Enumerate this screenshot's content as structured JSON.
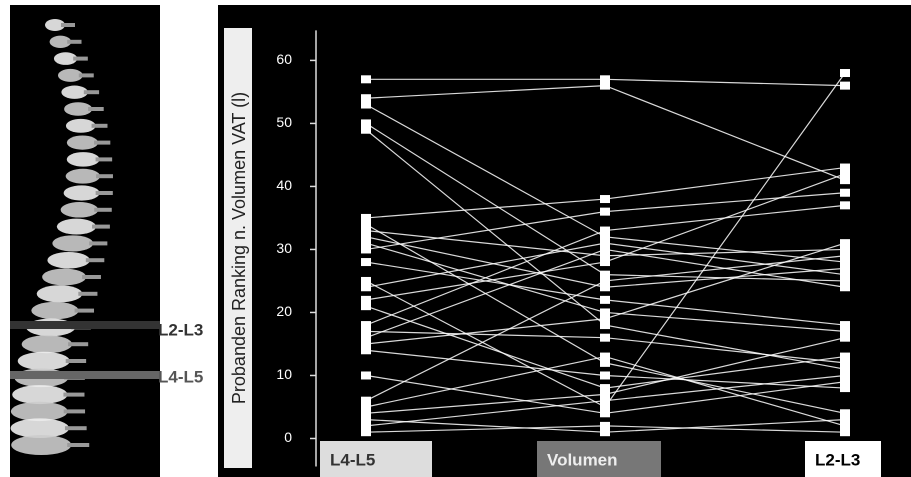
{
  "chart_data": {
    "type": "slope",
    "ylabel": "Probanden Ranking n. Volumen VAT (l)",
    "categories": [
      "L4-L5",
      "Volumen",
      "L2-L3"
    ],
    "color": "#ffffff",
    "ylim": [
      -5,
      68
    ],
    "yticks": [
      0,
      10,
      20,
      30,
      40,
      50,
      60
    ],
    "series": [
      {
        "values": [
          57,
          57,
          56
        ]
      },
      {
        "values": [
          54,
          56,
          41
        ]
      },
      {
        "values": [
          53,
          32,
          28
        ]
      },
      {
        "values": [
          50,
          26,
          25
        ]
      },
      {
        "values": [
          49,
          18,
          11
        ]
      },
      {
        "values": [
          35,
          38,
          43
        ]
      },
      {
        "values": [
          34,
          12,
          4
        ]
      },
      {
        "values": [
          33,
          29,
          30
        ]
      },
      {
        "values": [
          32,
          24,
          27
        ]
      },
      {
        "values": [
          31,
          20,
          17
        ]
      },
      {
        "values": [
          30,
          36,
          39
        ]
      },
      {
        "values": [
          25,
          5,
          58
        ]
      },
      {
        "values": [
          24,
          31,
          26
        ]
      },
      {
        "values": [
          22,
          28,
          42
        ]
      },
      {
        "values": [
          21,
          8,
          13
        ]
      },
      {
        "values": [
          18,
          33,
          37
        ]
      },
      {
        "values": [
          17,
          16,
          12
        ]
      },
      {
        "values": [
          16,
          30,
          24
        ]
      },
      {
        "values": [
          15,
          19,
          31
        ]
      },
      {
        "values": [
          14,
          10,
          8
        ]
      },
      {
        "values": [
          10,
          4,
          9
        ]
      },
      {
        "values": [
          6,
          25,
          29
        ]
      },
      {
        "values": [
          5,
          13,
          2
        ]
      },
      {
        "values": [
          4,
          7,
          16
        ]
      },
      {
        "values": [
          3,
          1,
          3
        ]
      },
      {
        "values": [
          2,
          6,
          10
        ]
      },
      {
        "values": [
          1,
          2,
          1
        ]
      },
      {
        "values": [
          28,
          22,
          18
        ]
      }
    ]
  },
  "spine_labels": [
    "L2-L3",
    "L4-L5"
  ]
}
